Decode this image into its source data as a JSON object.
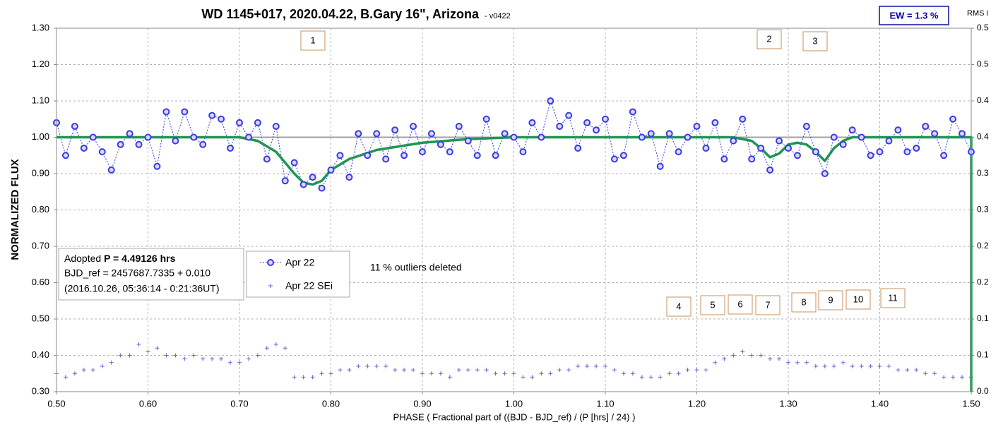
{
  "chart_data": {
    "type": "scatter",
    "title": "WD 1145+017, 2020.04.22, B.Gary 16\", Arizona",
    "subtitle": "- v0422",
    "badge": "EW = 1.3 %",
    "y2_label": "RMS i",
    "x_label": "PHASE ( Fractional part of ((BJD - BJD_ref) / (P [hrs] / 24) )",
    "y_label": "NORMALIZED FLUX",
    "xlim": [
      0.5,
      1.5
    ],
    "ylim": [
      0.3,
      1.3
    ],
    "y2lim": [
      0,
      0.5
    ],
    "grid": true,
    "reference_line": 1.0,
    "xticks": [
      {
        "value": 0.5,
        "label": "0.50"
      },
      {
        "value": 0.6,
        "label": "0.60"
      },
      {
        "value": 0.7,
        "label": "0.70"
      },
      {
        "value": 0.8,
        "label": "0.80"
      },
      {
        "value": 0.9,
        "label": "0.90"
      },
      {
        "value": 1.0,
        "label": "1.00"
      },
      {
        "value": 1.1,
        "label": "1.10"
      },
      {
        "value": 1.2,
        "label": "1.20"
      },
      {
        "value": 1.3,
        "label": "1.30"
      },
      {
        "value": 1.4,
        "label": "1.40"
      },
      {
        "value": 1.5,
        "label": "1.50"
      }
    ],
    "yticks": [
      {
        "value": 0.3,
        "label": "0.30"
      },
      {
        "value": 0.4,
        "label": "0.40"
      },
      {
        "value": 0.5,
        "label": "0.50"
      },
      {
        "value": 0.6,
        "label": "0.60"
      },
      {
        "value": 0.7,
        "label": "0.70"
      },
      {
        "value": 0.8,
        "label": "0.80"
      },
      {
        "value": 0.9,
        "label": "0.90"
      },
      {
        "value": 1.0,
        "label": "1.00"
      },
      {
        "value": 1.1,
        "label": "1.10"
      },
      {
        "value": 1.2,
        "label": "1.20"
      },
      {
        "value": 1.3,
        "label": "1.30"
      }
    ],
    "y2ticks": [
      {
        "value": 0,
        "label": "0.0"
      },
      {
        "value": 0.05,
        "label": "0.1"
      },
      {
        "value": 0.1,
        "label": "0.1"
      },
      {
        "value": 0.15,
        "label": "0.2"
      },
      {
        "value": 0.2,
        "label": "0.2"
      },
      {
        "value": 0.25,
        "label": "0.3"
      },
      {
        "value": 0.3,
        "label": "0.3"
      },
      {
        "value": 0.35,
        "label": "0.4"
      },
      {
        "value": 0.4,
        "label": "0.4"
      },
      {
        "value": 0.45,
        "label": "0.5"
      },
      {
        "value": 0.5,
        "label": "0.5"
      }
    ],
    "x": [
      0.5,
      0.51,
      0.52,
      0.53,
      0.54,
      0.55,
      0.56,
      0.57,
      0.58,
      0.59,
      0.6,
      0.61,
      0.62,
      0.63,
      0.64,
      0.65,
      0.66,
      0.67,
      0.68,
      0.69,
      0.7,
      0.71,
      0.72,
      0.73,
      0.74,
      0.75,
      0.76,
      0.77,
      0.78,
      0.79,
      0.8,
      0.81,
      0.82,
      0.83,
      0.84,
      0.85,
      0.86,
      0.87,
      0.88,
      0.89,
      0.9,
      0.91,
      0.92,
      0.93,
      0.94,
      0.95,
      0.96,
      0.97,
      0.98,
      0.99,
      1.0,
      1.01,
      1.02,
      1.03,
      1.04,
      1.05,
      1.06,
      1.07,
      1.08,
      1.09,
      1.1,
      1.11,
      1.12,
      1.13,
      1.14,
      1.15,
      1.16,
      1.17,
      1.18,
      1.19,
      1.2,
      1.21,
      1.22,
      1.23,
      1.24,
      1.25,
      1.26,
      1.27,
      1.28,
      1.29,
      1.3,
      1.31,
      1.32,
      1.33,
      1.34,
      1.35,
      1.36,
      1.37,
      1.38,
      1.39,
      1.4,
      1.41,
      1.42,
      1.43,
      1.44,
      1.45,
      1.46,
      1.47,
      1.48,
      1.49,
      1.5
    ],
    "series": [
      {
        "name": "Apr 22",
        "color": "#3a3ae0",
        "values": [
          1.04,
          0.95,
          1.03,
          0.97,
          1.0,
          0.96,
          0.91,
          0.98,
          1.01,
          0.98,
          1.0,
          0.92,
          1.07,
          0.99,
          1.07,
          1.0,
          0.98,
          1.06,
          1.05,
          0.97,
          1.04,
          1.0,
          1.04,
          0.94,
          1.03,
          0.88,
          0.93,
          0.87,
          0.89,
          0.86,
          0.91,
          0.95,
          0.89,
          1.01,
          0.95,
          1.01,
          0.94,
          1.02,
          0.95,
          1.03,
          0.96,
          1.01,
          0.98,
          0.96,
          1.03,
          0.99,
          0.95,
          1.05,
          0.95,
          1.01,
          1.0,
          0.96,
          1.04,
          1.0,
          1.1,
          1.03,
          1.06,
          0.97,
          1.04,
          1.02,
          1.05,
          0.94,
          0.95,
          1.07,
          1.0,
          1.01,
          0.92,
          1.01,
          0.96,
          1.0,
          1.03,
          0.97,
          1.04,
          0.94,
          0.99,
          1.05,
          0.94,
          0.97,
          0.91,
          0.99,
          0.97,
          0.95,
          1.03,
          0.96,
          0.9,
          1.0,
          0.98,
          1.02,
          1.0,
          0.95,
          0.96,
          0.99,
          1.02,
          0.96,
          0.97,
          1.03,
          1.01,
          0.95,
          1.05,
          1.01,
          0.96
        ]
      },
      {
        "name": "Apr 22 SEi",
        "color": "#6464d2",
        "values": [
          0.35,
          0.34,
          0.35,
          0.36,
          0.36,
          0.37,
          0.38,
          0.4,
          0.4,
          0.43,
          0.41,
          0.42,
          0.4,
          0.4,
          0.39,
          0.4,
          0.39,
          0.39,
          0.39,
          0.38,
          0.38,
          0.39,
          0.4,
          0.42,
          0.43,
          0.42,
          0.34,
          0.34,
          0.34,
          0.35,
          0.35,
          0.36,
          0.36,
          0.37,
          0.37,
          0.37,
          0.37,
          0.36,
          0.36,
          0.36,
          0.35,
          0.35,
          0.35,
          0.34,
          0.36,
          0.36,
          0.36,
          0.36,
          0.35,
          0.35,
          0.35,
          0.34,
          0.34,
          0.35,
          0.35,
          0.36,
          0.36,
          0.37,
          0.37,
          0.37,
          0.37,
          0.36,
          0.35,
          0.35,
          0.34,
          0.34,
          0.34,
          0.35,
          0.35,
          0.36,
          0.36,
          0.36,
          0.38,
          0.39,
          0.4,
          0.41,
          0.4,
          0.4,
          0.39,
          0.39,
          0.38,
          0.38,
          0.38,
          0.37,
          0.37,
          0.37,
          0.38,
          0.37,
          0.37,
          0.37,
          0.37,
          0.37,
          0.36,
          0.36,
          0.36,
          0.35,
          0.35,
          0.34,
          0.34,
          0.34,
          0.34
        ]
      }
    ],
    "model": {
      "color": "#1e9650",
      "x": [
        0.5,
        0.7,
        0.72,
        0.74,
        0.75,
        0.76,
        0.77,
        0.78,
        0.79,
        0.8,
        0.82,
        0.85,
        0.9,
        0.95,
        1.0,
        1.24,
        1.26,
        1.27,
        1.28,
        1.29,
        1.3,
        1.31,
        1.32,
        1.33,
        1.34,
        1.35,
        1.36,
        1.37,
        1.5,
        1.5
      ],
      "values": [
        1.0,
        1.0,
        0.99,
        0.96,
        0.93,
        0.9,
        0.875,
        0.87,
        0.88,
        0.91,
        0.94,
        0.965,
        0.985,
        0.995,
        1.0,
        1.0,
        0.99,
        0.97,
        0.945,
        0.955,
        0.98,
        0.985,
        0.98,
        0.96,
        0.935,
        0.97,
        0.99,
        1.0,
        1.0,
        0.3
      ]
    },
    "info_box": {
      "lead": "Adopted ",
      "period": "P = 4.49126 hrs",
      "bjd_ref": "BJD_ref = 2457687.7335 + 0.010",
      "date": "(2016.10.26, 05:36:14 - 0:21:36UT)"
    },
    "note": "11 % outliers deleted",
    "annotations": [
      "1",
      "2",
      "3",
      "4",
      "5",
      "6",
      "7",
      "8",
      "9",
      "10",
      "11"
    ]
  }
}
